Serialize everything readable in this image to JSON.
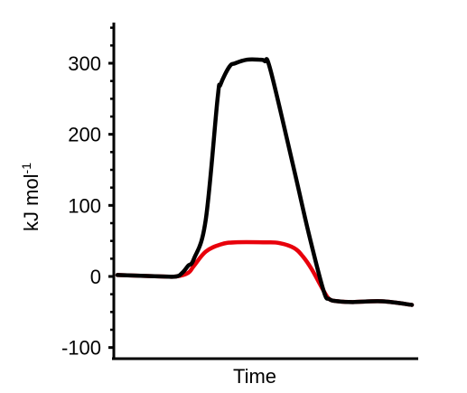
{
  "chart_data": {
    "type": "line",
    "title": "",
    "xlabel": "Time",
    "ylabel": "kJ mol",
    "ylabel_superscript": "-1",
    "ylim": [
      -100,
      360
    ],
    "xlim": [
      0,
      100
    ],
    "yticks": [
      -100,
      0,
      100,
      200,
      300
    ],
    "ytick_labels": [
      "-100",
      "0",
      "100",
      "200",
      "300"
    ],
    "grid": false,
    "legend": "none",
    "series": [
      {
        "color": "#e8000b",
        "x": [
          0,
          15,
          20,
          24,
          26,
          30,
          35,
          40,
          50,
          55,
          60,
          63,
          66,
          70,
          72,
          75,
          80,
          90,
          100
        ],
        "y": [
          2,
          0,
          0,
          5,
          15,
          35,
          45,
          48,
          48,
          47,
          40,
          28,
          10,
          -20,
          -32,
          -35,
          -36,
          -35,
          -40
        ]
      },
      {
        "color": "#000000",
        "x": [
          0,
          15,
          20,
          22,
          24,
          26,
          30,
          34,
          35,
          38,
          40,
          44,
          48,
          50,
          52,
          60,
          65,
          70,
          72,
          75,
          80,
          90,
          100
        ],
        "y": [
          2,
          0,
          0,
          5,
          15,
          25,
          80,
          250,
          270,
          295,
          300,
          305,
          305,
          303,
          290,
          150,
          60,
          -20,
          -32,
          -35,
          -36,
          -35,
          -40
        ]
      }
    ]
  }
}
